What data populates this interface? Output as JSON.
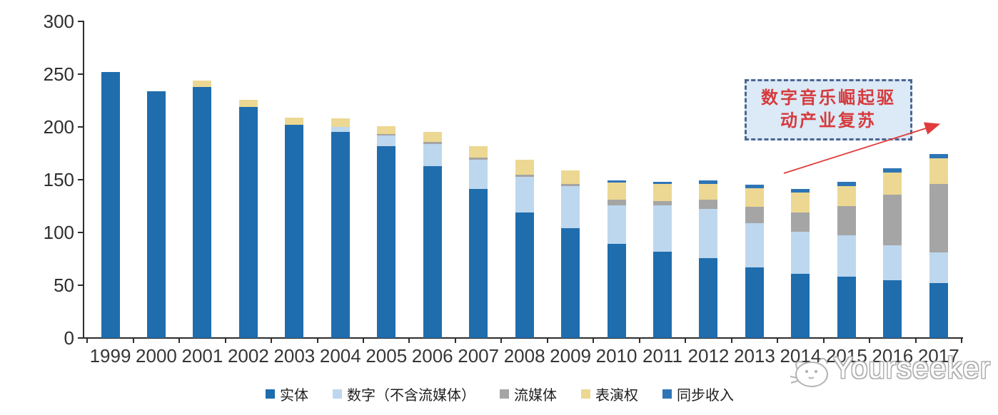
{
  "chart_data": {
    "type": "bar",
    "stacked": true,
    "title": "",
    "xlabel": "",
    "ylabel": "",
    "ylim": [
      0,
      300
    ],
    "y_ticks": [
      0,
      50,
      100,
      150,
      200,
      250,
      300
    ],
    "grid": false,
    "legend_position": "bottom",
    "categories": [
      "1999",
      "2000",
      "2001",
      "2002",
      "2003",
      "2004",
      "2005",
      "2006",
      "2007",
      "2008",
      "2009",
      "2010",
      "2011",
      "2012",
      "2013",
      "2014",
      "2015",
      "2016",
      "2017"
    ],
    "series": [
      {
        "key": "physical",
        "name": "实体",
        "color": "#1f6dad",
        "values": [
          252,
          234,
          238,
          219,
          202,
          195,
          182,
          163,
          141,
          119,
          104,
          89,
          82,
          76,
          67,
          61,
          58,
          55,
          52
        ]
      },
      {
        "key": "digital",
        "name": "数字（不含流媒体）",
        "color": "#bdd7ee",
        "values": [
          0,
          0,
          0,
          0,
          0,
          5,
          10,
          21,
          28,
          34,
          40,
          37,
          44,
          46,
          42,
          40,
          39,
          33,
          29
        ]
      },
      {
        "key": "streaming",
        "name": "流媒体",
        "color": "#a5a5a5",
        "values": [
          0,
          0,
          0,
          0,
          0,
          0,
          1,
          2,
          2,
          2,
          2,
          5,
          4,
          9,
          15,
          18,
          28,
          48,
          65
        ]
      },
      {
        "key": "performance",
        "name": "表演权",
        "color": "#ecd892",
        "values": [
          0,
          0,
          6,
          7,
          7,
          8,
          8,
          9,
          11,
          14,
          13,
          16,
          16,
          15,
          18,
          19,
          19,
          21,
          24
        ]
      },
      {
        "key": "sync",
        "name": "同步收入",
        "color": "#2e75b6",
        "values": [
          0,
          0,
          0,
          0,
          0,
          0,
          0,
          0,
          0,
          0,
          0,
          2,
          2,
          3,
          3,
          3,
          4,
          4,
          4
        ]
      }
    ]
  },
  "annotation": {
    "lines": [
      "数字音乐崛起驱",
      "动产业复苏"
    ],
    "text_color": "#d63a3c",
    "box_fill": "#dce9f6",
    "box_border": "#4c6592",
    "arrow_color": "#e23b3b"
  },
  "watermark": {
    "text": "Yourseeker",
    "logo": "cat-logo-icon",
    "color": "#b0b0b0"
  },
  "colors": {
    "axis": "#2d2d2d",
    "tick_label": "#2f2f2f",
    "background": "#ffffff"
  }
}
